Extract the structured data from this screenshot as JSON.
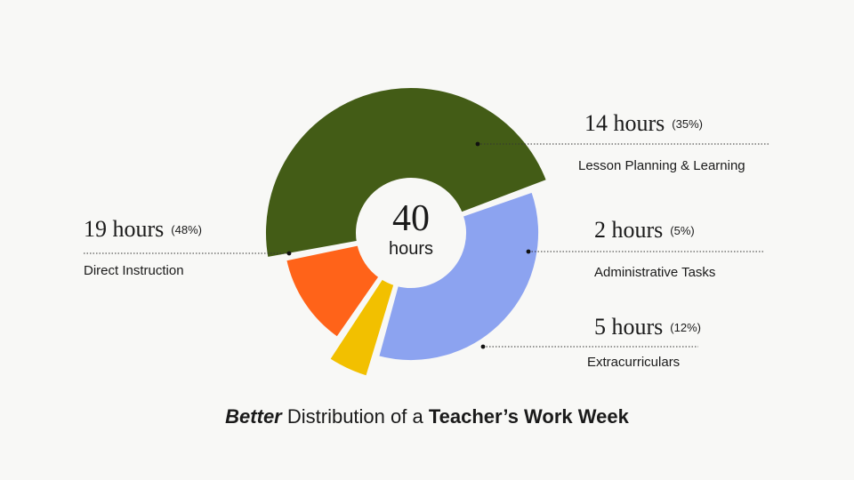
{
  "chart_data": {
    "type": "pie",
    "variant": "donut",
    "total": {
      "value": "40",
      "unit": "hours"
    },
    "title": {
      "emphasis": "Better",
      "middle": " Distribution of a ",
      "strong": "Teacher’s Work Week"
    },
    "segments": [
      {
        "name": "Lesson Planning & Learning",
        "value": 14,
        "value_label": "14 hours",
        "percent_label": "(35%)",
        "color": "#8CA3F0"
      },
      {
        "name": "Administrative Tasks",
        "value": 2,
        "value_label": "2 hours",
        "percent_label": "(5%)",
        "color": "#F2C000"
      },
      {
        "name": "Extracurriculars",
        "value": 5,
        "value_label": "5 hours",
        "percent_label": "(12%)",
        "color": "#FF6319"
      },
      {
        "name": "Direct Instruction",
        "value": 19,
        "value_label": "19 hours",
        "percent_label": "(48%)",
        "color": "#435C16"
      }
    ],
    "start_angle_deg": -20
  }
}
